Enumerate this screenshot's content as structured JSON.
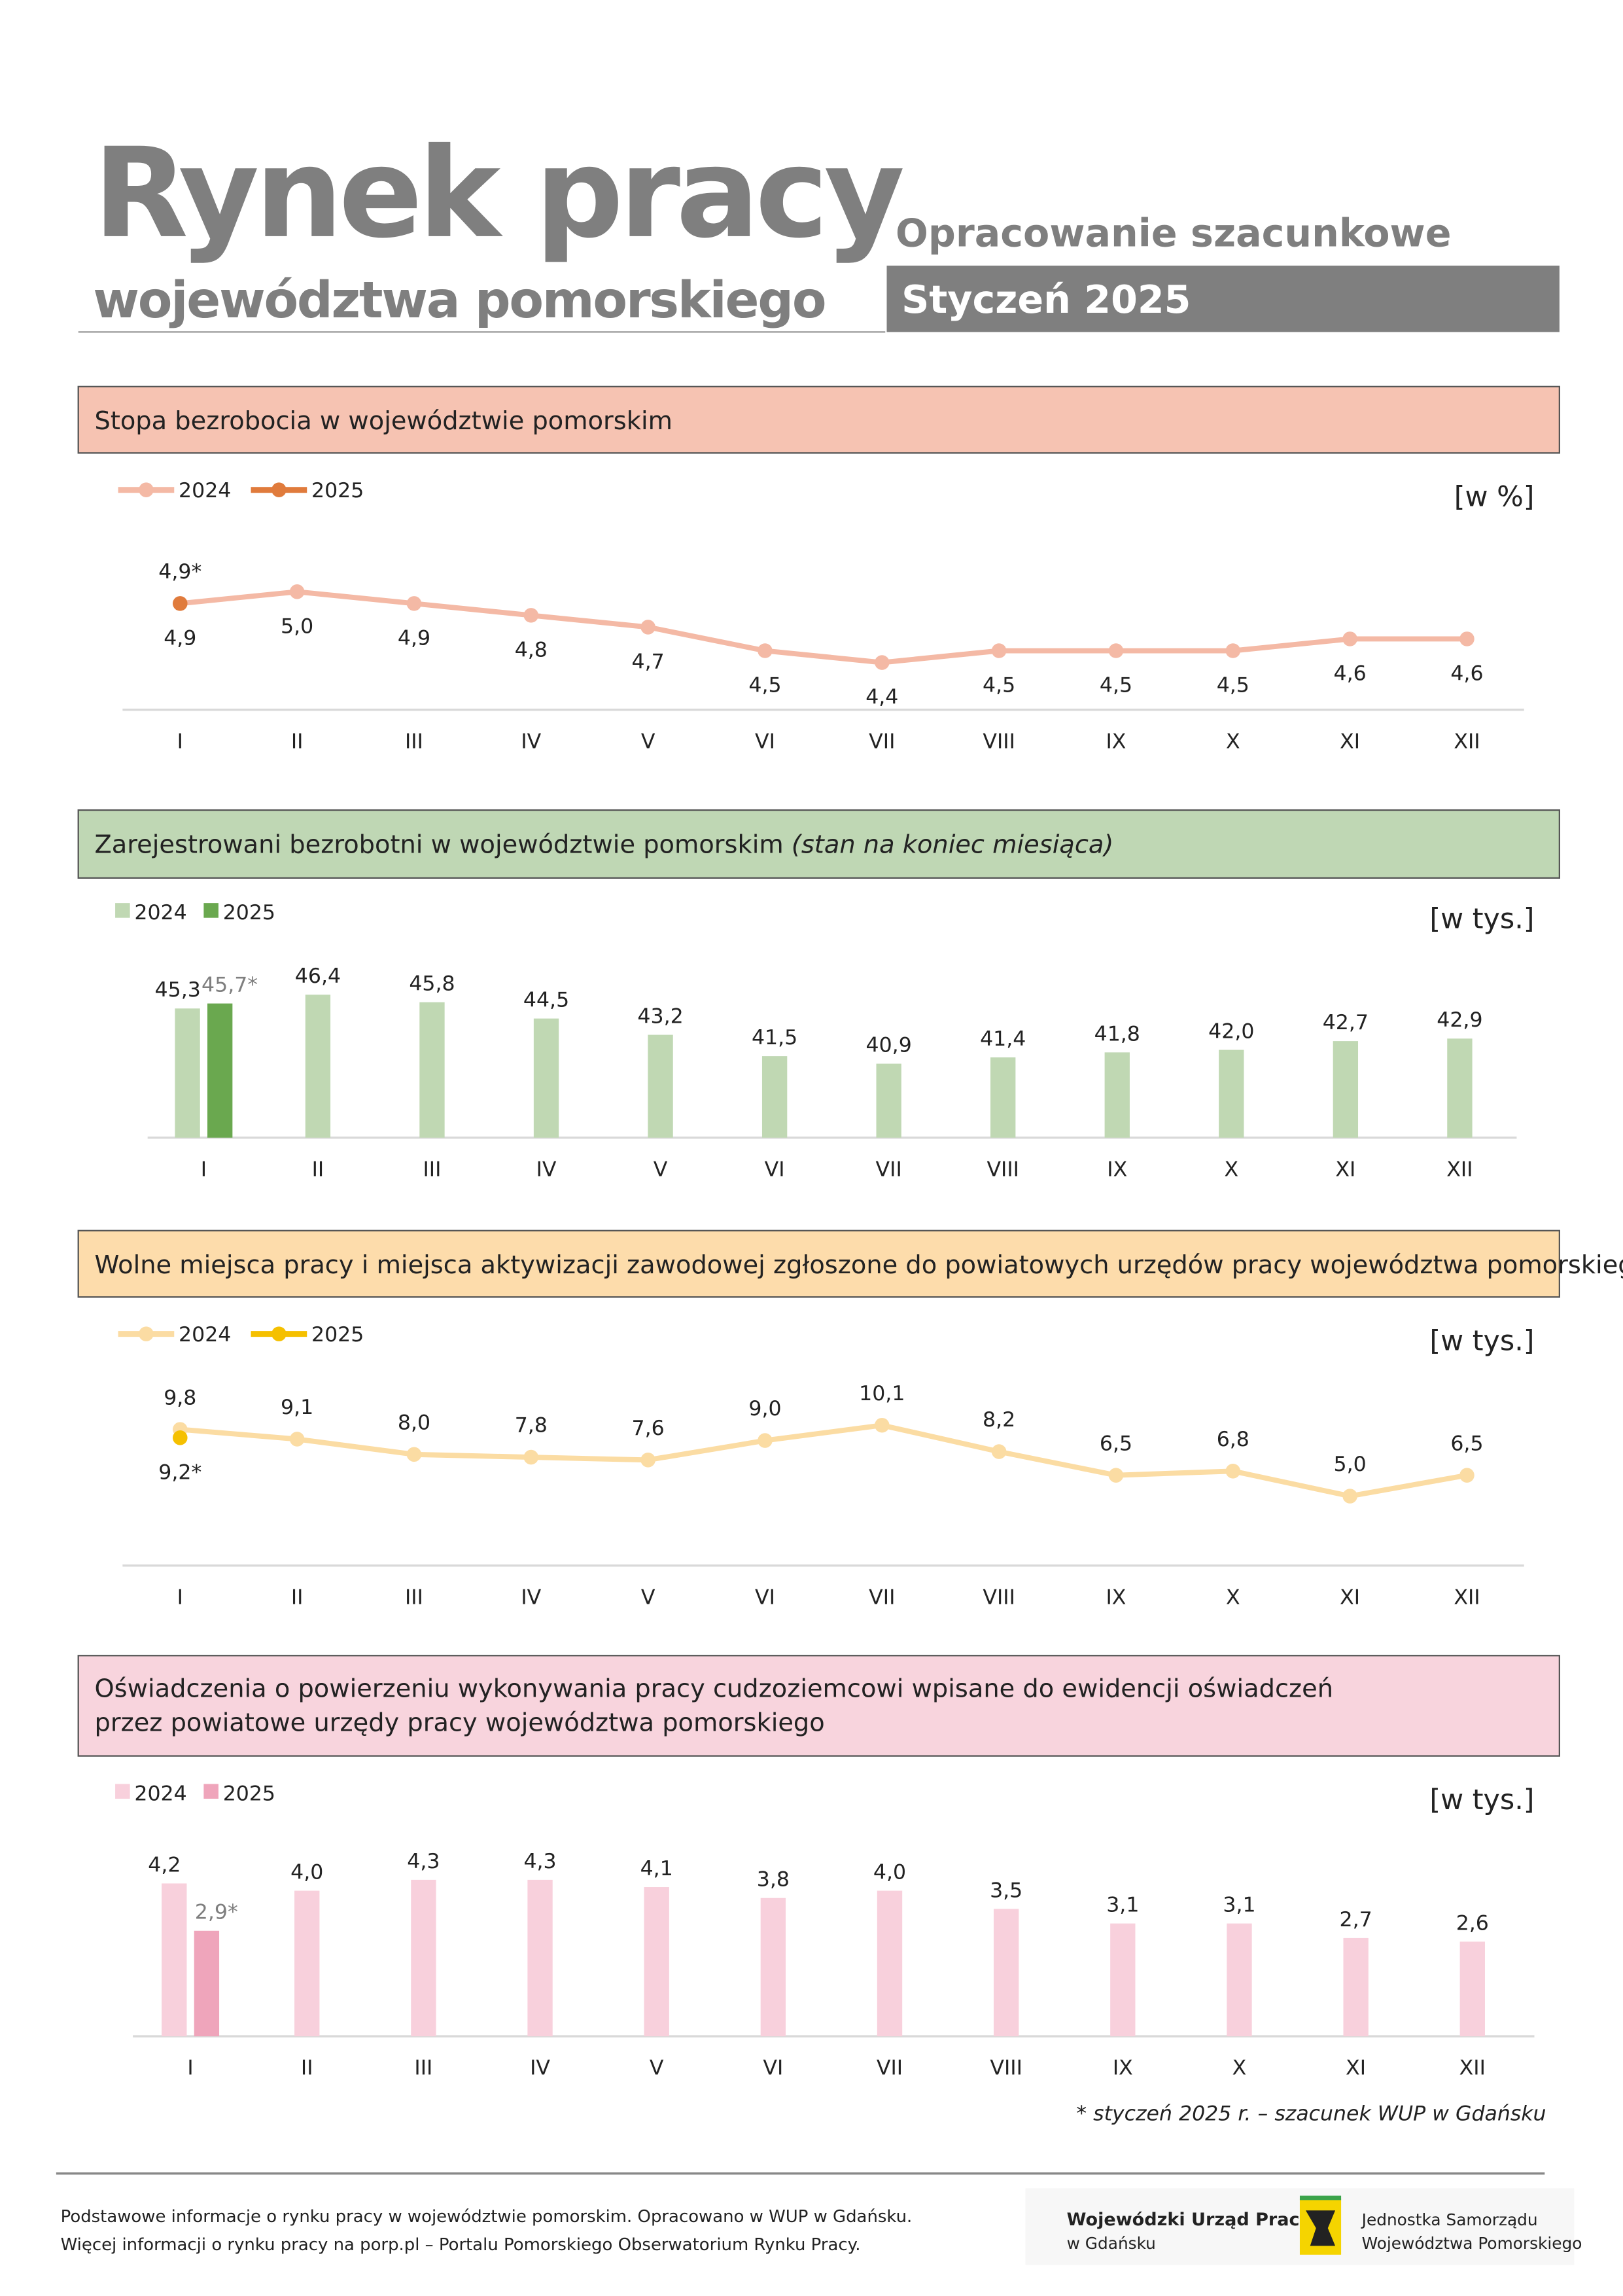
{
  "header": {
    "title": "Rynek pracy",
    "subtitle": "województwa pomorskiego",
    "note": "Opracowanie szacunkowe",
    "period": "Styczeń 2025"
  },
  "chart_data": [
    {
      "type": "line",
      "title": "Stopa bezrobocia w województwie pomorskim",
      "y_label": "[w %]",
      "categories": [
        "I",
        "II",
        "III",
        "IV",
        "V",
        "VI",
        "VII",
        "VIII",
        "IX",
        "X",
        "XI",
        "XII"
      ],
      "series": [
        {
          "name": "2024",
          "color": "#f4b9a5",
          "values": [
            4.9,
            5.0,
            4.9,
            4.8,
            4.7,
            4.5,
            4.4,
            4.5,
            4.5,
            4.5,
            4.6,
            4.6
          ],
          "value_labels": [
            "4,9",
            "5,0",
            "4,9",
            "4,8",
            "4,7",
            "4,5",
            "4,4",
            "4,5",
            "4,5",
            "4,5",
            "4,6",
            "4,6"
          ]
        },
        {
          "name": "2025",
          "color": "#e07b3c",
          "values": [
            4.9,
            null,
            null,
            null,
            null,
            null,
            null,
            null,
            null,
            null,
            null,
            null
          ],
          "value_labels": [
            "4,9*",
            null,
            null,
            null,
            null,
            null,
            null,
            null,
            null,
            null,
            null,
            null
          ]
        }
      ],
      "ylim": [
        4.0,
        5.2
      ]
    },
    {
      "type": "bar",
      "title": "Zarejestrowani bezrobotni w województwie pomorskim",
      "subtitle": "(stan na koniec miesiąca)",
      "y_label": "[w tys.]",
      "categories": [
        "I",
        "II",
        "III",
        "IV",
        "V",
        "VI",
        "VII",
        "VIII",
        "IX",
        "X",
        "XI",
        "XII"
      ],
      "series": [
        {
          "name": "2024",
          "color": "#c0d8b3",
          "values": [
            45.3,
            46.4,
            45.8,
            44.5,
            43.2,
            41.5,
            40.9,
            41.4,
            41.8,
            42.0,
            42.7,
            42.9
          ],
          "value_labels": [
            "45,3",
            "46,4",
            "45,8",
            "44,5",
            "43,2",
            "41,5",
            "40,9",
            "41,4",
            "41,8",
            "42,0",
            "42,7",
            "42,9"
          ]
        },
        {
          "name": "2025",
          "color": "#6aa84f",
          "values": [
            45.7,
            null,
            null,
            null,
            null,
            null,
            null,
            null,
            null,
            null,
            null,
            null
          ],
          "value_labels": [
            "45,7*",
            null,
            null,
            null,
            null,
            null,
            null,
            null,
            null,
            null,
            null,
            null
          ]
        }
      ],
      "ylim": [
        35,
        49
      ]
    },
    {
      "type": "line",
      "title": "Wolne miejsca pracy i miejsca aktywizacji zawodowej zgłoszone do powiatowych urzędów pracy województwa pomorskiego",
      "y_label": "[w tys.]",
      "categories": [
        "I",
        "II",
        "III",
        "IV",
        "V",
        "VI",
        "VII",
        "VIII",
        "IX",
        "X",
        "XI",
        "XII"
      ],
      "series": [
        {
          "name": "2024",
          "color": "#fbdca3",
          "values": [
            9.8,
            9.1,
            8.0,
            7.8,
            7.6,
            9.0,
            10.1,
            8.2,
            6.5,
            6.8,
            5.0,
            6.5
          ],
          "value_labels": [
            "9,8",
            "9,1",
            "8,0",
            "7,8",
            "7,6",
            "9,0",
            "10,1",
            "8,2",
            "6,5",
            "6,8",
            "5,0",
            "6,5"
          ]
        },
        {
          "name": "2025",
          "color": "#f5c000",
          "values": [
            9.2,
            null,
            null,
            null,
            null,
            null,
            null,
            null,
            null,
            null,
            null,
            null
          ],
          "value_labels": [
            "9,2*",
            null,
            null,
            null,
            null,
            null,
            null,
            null,
            null,
            null,
            null,
            null
          ]
        }
      ],
      "ylim": [
        0,
        12
      ]
    },
    {
      "type": "bar",
      "title": [
        "Oświadczenia o powierzeniu wykonywania pracy cudzoziemcowi wpisane do ewidencji oświadczeń",
        "przez powiatowe urzędy pracy województwa pomorskiego"
      ],
      "y_label": "[w tys.]",
      "categories": [
        "I",
        "II",
        "III",
        "IV",
        "V",
        "VI",
        "VII",
        "VIII",
        "IX",
        "X",
        "XI",
        "XII"
      ],
      "series": [
        {
          "name": "2024",
          "color": "#f8d0dc",
          "values": [
            4.2,
            4.0,
            4.3,
            4.3,
            4.1,
            3.8,
            4.0,
            3.5,
            3.1,
            3.1,
            2.7,
            2.6
          ],
          "value_labels": [
            "4,2",
            "4,0",
            "4,3",
            "4,3",
            "4,1",
            "3,8",
            "4,0",
            "3,5",
            "3,1",
            "3,1",
            "2,7",
            "2,6"
          ]
        },
        {
          "name": "2025",
          "color": "#efa5bb",
          "values": [
            2.9,
            null,
            null,
            null,
            null,
            null,
            null,
            null,
            null,
            null,
            null,
            null
          ],
          "value_labels": [
            "2,9*",
            null,
            null,
            null,
            null,
            null,
            null,
            null,
            null,
            null,
            null,
            null
          ]
        }
      ],
      "ylim": [
        0,
        4.5
      ]
    }
  ],
  "footnote": "* styczeń 2025 r. – szacunek WUP w Gdańsku",
  "footer": {
    "lines": [
      "Podstawowe informacje o rynku pracy w województwie pomorskim. Opracowano w WUP w Gdańsku.",
      "Więcej informacji o rynku pracy na porp.pl – Portalu Pomorskiego Obserwatorium Rynku Pracy."
    ],
    "logo_left": [
      "Wojewódzki Urząd Pracy",
      "w Gdańsku"
    ],
    "logo_right": [
      "Jednostka Samorządu",
      "Województwa Pomorskiego"
    ]
  }
}
